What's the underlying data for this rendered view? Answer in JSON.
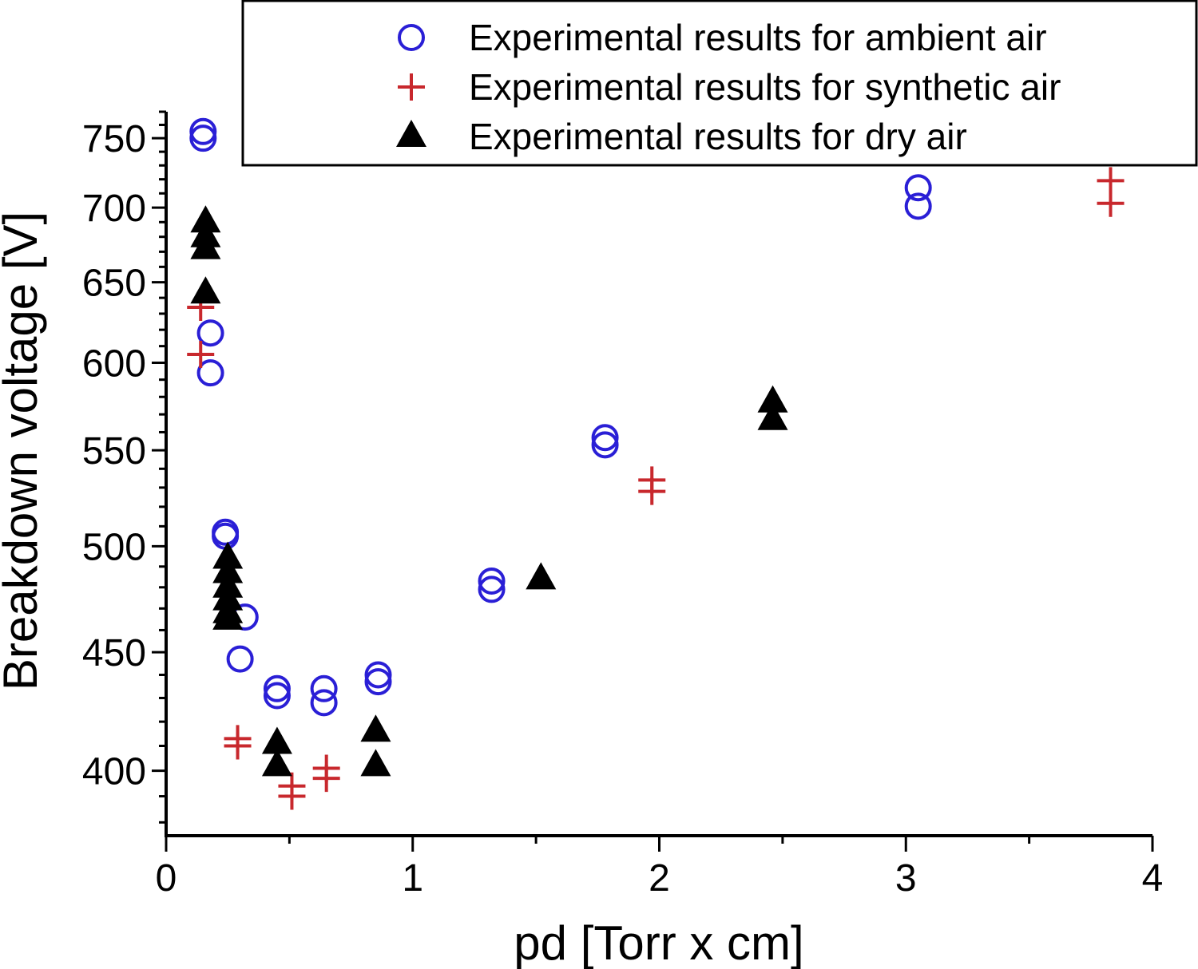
{
  "chart_data": {
    "type": "scatter",
    "xlabel": "pd [Torr x cm]",
    "ylabel": "Breakdown voltage [V]",
    "xlim": [
      0,
      4
    ],
    "ylim": [
      375,
      770
    ],
    "y_scale": "log",
    "x_ticks": [
      0,
      1,
      2,
      3,
      4
    ],
    "y_ticks": [
      400,
      450,
      500,
      550,
      600,
      650,
      700,
      750
    ],
    "grid": false,
    "legend_position": "top-right",
    "series": [
      {
        "name": "Experimental results for ambient air",
        "marker": "open-circle",
        "color": "#2a1fd6",
        "points": [
          {
            "x": 0.15,
            "y": 755
          },
          {
            "x": 0.15,
            "y": 750
          },
          {
            "x": 0.18,
            "y": 618
          },
          {
            "x": 0.18,
            "y": 594
          },
          {
            "x": 0.24,
            "y": 507
          },
          {
            "x": 0.24,
            "y": 505
          },
          {
            "x": 0.32,
            "y": 466
          },
          {
            "x": 0.3,
            "y": 447
          },
          {
            "x": 0.45,
            "y": 434
          },
          {
            "x": 0.45,
            "y": 431
          },
          {
            "x": 0.64,
            "y": 434
          },
          {
            "x": 0.64,
            "y": 428
          },
          {
            "x": 0.86,
            "y": 440
          },
          {
            "x": 0.86,
            "y": 437
          },
          {
            "x": 1.32,
            "y": 483
          },
          {
            "x": 1.32,
            "y": 479
          },
          {
            "x": 1.78,
            "y": 557
          },
          {
            "x": 1.78,
            "y": 553
          },
          {
            "x": 3.05,
            "y": 714
          },
          {
            "x": 3.05,
            "y": 701
          }
        ]
      },
      {
        "name": "Experimental results for synthetic air",
        "marker": "plus",
        "color": "#c8282d",
        "points": [
          {
            "x": 0.14,
            "y": 634
          },
          {
            "x": 0.14,
            "y": 605
          },
          {
            "x": 0.29,
            "y": 413
          },
          {
            "x": 0.29,
            "y": 410
          },
          {
            "x": 0.51,
            "y": 394
          },
          {
            "x": 0.51,
            "y": 390
          },
          {
            "x": 0.65,
            "y": 401
          },
          {
            "x": 0.65,
            "y": 397
          },
          {
            "x": 1.97,
            "y": 534
          },
          {
            "x": 1.97,
            "y": 528
          },
          {
            "x": 3.83,
            "y": 719
          },
          {
            "x": 3.83,
            "y": 703
          }
        ]
      },
      {
        "name": "Experimental results for dry air",
        "marker": "filled-triangle",
        "color": "#000000",
        "points": [
          {
            "x": 0.16,
            "y": 690
          },
          {
            "x": 0.16,
            "y": 680
          },
          {
            "x": 0.16,
            "y": 672
          },
          {
            "x": 0.16,
            "y": 643
          },
          {
            "x": 0.25,
            "y": 494
          },
          {
            "x": 0.25,
            "y": 487
          },
          {
            "x": 0.25,
            "y": 480
          },
          {
            "x": 0.25,
            "y": 474
          },
          {
            "x": 0.25,
            "y": 468
          },
          {
            "x": 0.25,
            "y": 465
          },
          {
            "x": 0.45,
            "y": 411
          },
          {
            "x": 0.45,
            "y": 402
          },
          {
            "x": 0.85,
            "y": 416
          },
          {
            "x": 0.85,
            "y": 402
          },
          {
            "x": 1.52,
            "y": 484
          },
          {
            "x": 2.46,
            "y": 577
          },
          {
            "x": 2.46,
            "y": 567
          }
        ]
      }
    ]
  }
}
